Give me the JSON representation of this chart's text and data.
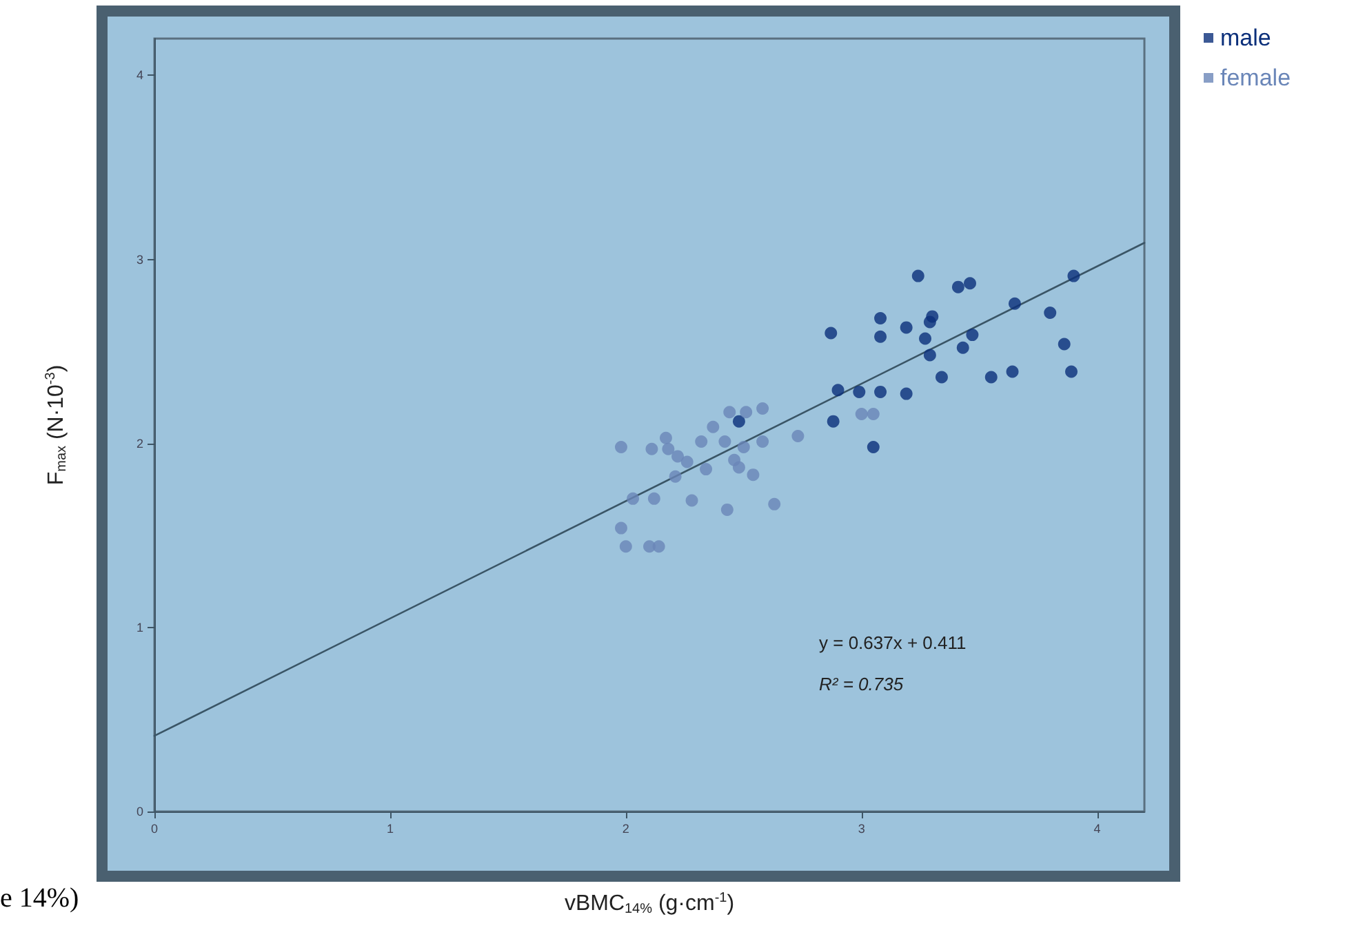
{
  "chart_data": {
    "type": "scatter",
    "xlabel": "vBMC$_{14%}$ (g·cm$^{-1}$)",
    "ylabel": "F$_{max}$ (N·10$^{-3}$)",
    "xlim": [
      0,
      4.2
    ],
    "ylim": [
      0,
      4.2
    ],
    "xticks": [
      0,
      1,
      2,
      3,
      4
    ],
    "yticks": [
      0,
      1,
      2,
      3,
      4
    ],
    "grid": false,
    "legend": "top right",
    "annotations": [
      "y = 0.637x + 0.411",
      "R² = 0.735",
      "e 14%)"
    ],
    "series": [
      {
        "name": "male",
        "color": "#0b2f7a",
        "marker": "circle",
        "x": [
          3.24,
          3.41,
          3.46,
          3.9,
          3.65,
          3.8,
          3.08,
          3.08,
          2.87,
          3.19,
          3.3,
          3.29,
          3.27,
          3.29,
          3.47,
          3.43,
          3.86,
          3.34,
          3.55,
          3.64,
          3.89,
          2.9,
          2.99,
          3.08,
          3.19,
          2.88,
          3.05,
          2.48
        ],
        "values": [
          2.91,
          2.85,
          2.87,
          2.91,
          2.76,
          2.71,
          2.68,
          2.58,
          2.6,
          2.63,
          2.69,
          2.66,
          2.57,
          2.48,
          2.59,
          2.52,
          2.54,
          2.36,
          2.36,
          2.39,
          2.39,
          2.29,
          2.28,
          2.28,
          2.27,
          2.12,
          1.98,
          2.12
        ]
      },
      {
        "name": "female",
        "color": "#6a86b8",
        "marker": "circle",
        "x": [
          1.98,
          2.11,
          2.17,
          2.18,
          2.22,
          2.26,
          2.32,
          2.37,
          2.44,
          2.51,
          2.58,
          2.42,
          2.5,
          2.46,
          2.48,
          2.58,
          2.73,
          2.34,
          2.21,
          2.54,
          2.03,
          2.12,
          2.28,
          2.43,
          2.63,
          1.98,
          2.0,
          2.1,
          2.14,
          3.0,
          3.05
        ],
        "values": [
          1.98,
          1.97,
          2.03,
          1.97,
          1.93,
          1.9,
          2.01,
          2.09,
          2.17,
          2.17,
          2.19,
          2.01,
          1.98,
          1.91,
          1.87,
          2.01,
          2.04,
          1.86,
          1.82,
          1.83,
          1.7,
          1.7,
          1.69,
          1.64,
          1.67,
          1.54,
          1.44,
          1.44,
          1.44,
          2.16,
          2.16
        ]
      },
      {
        "type": "line",
        "color": "#3a5566",
        "line_style": "solid",
        "marker": "none",
        "x": [
          0,
          4.2
        ],
        "values": [
          0.411,
          3.09
        ]
      }
    ]
  }
}
